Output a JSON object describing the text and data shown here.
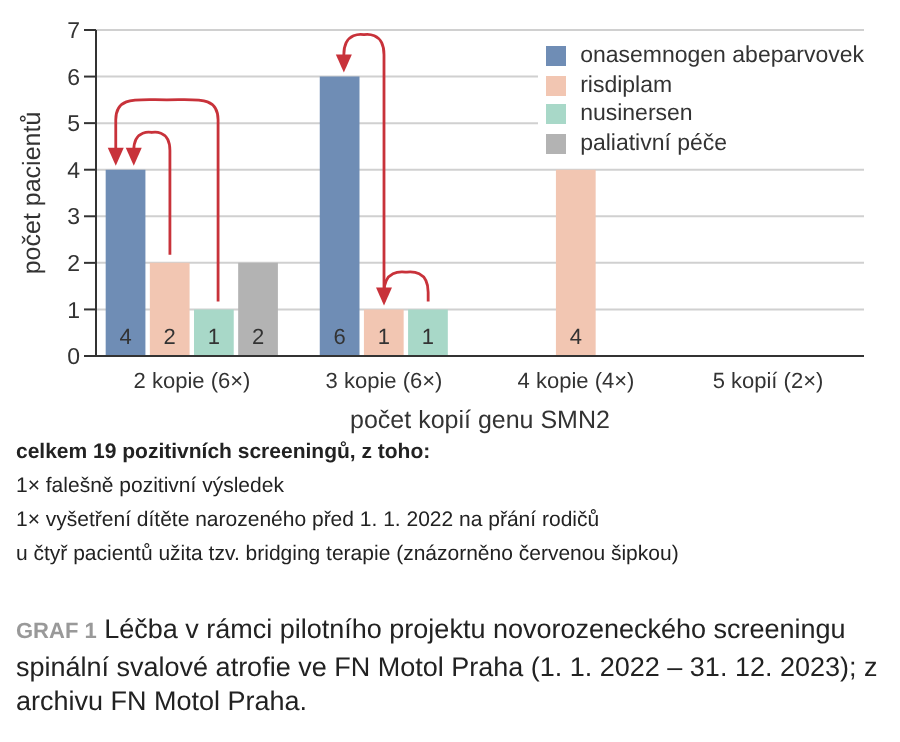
{
  "chart_data": {
    "type": "bar",
    "title": "GRAF 1 Léčba v rámci pilotního projektu novorozeneckého screeningu spinální svalové atrofie ve FN Motol Praha (1. 1. 2022 – 31. 12. 2023); z archivu FN Motol Praha.",
    "xlabel": "počet kopií genu SMN2",
    "ylabel": "počet pacientů",
    "categories": [
      "2 kopie (6×)",
      "3 kopie (6×)",
      "4 kopie (4×)",
      "5 kopií (2×)"
    ],
    "series": [
      {
        "name": "onasemnogen abeparvovek",
        "color": "#6f8db5",
        "values": [
          4,
          6,
          null,
          null
        ]
      },
      {
        "name": "risdiplam",
        "color": "#f2c6b2",
        "values": [
          2,
          1,
          4,
          null
        ]
      },
      {
        "name": "nusinersen",
        "color": "#a8d8c8",
        "values": [
          1,
          1,
          null,
          null
        ]
      },
      {
        "name": "paliativní péče",
        "color": "#b3b3b3",
        "values": [
          2,
          null,
          null,
          null
        ]
      }
    ],
    "ylim": [
      0,
      7
    ],
    "yticks": [
      0,
      1,
      2,
      3,
      4,
      5,
      6,
      7
    ],
    "grid": "y",
    "legend": "top right",
    "data_labels": true,
    "annotations": [
      "celkem 19 pozitivních screeningů, z toho:",
      "1× falešně pozitivní výsledek",
      "1× vyšetření dítěte narozeného před 1. 1. 2022 na přání rodičů",
      "u čtyř pacientů užita tzv. bridging terapie (znázorněno červenou šipkou)"
    ]
  }
}
